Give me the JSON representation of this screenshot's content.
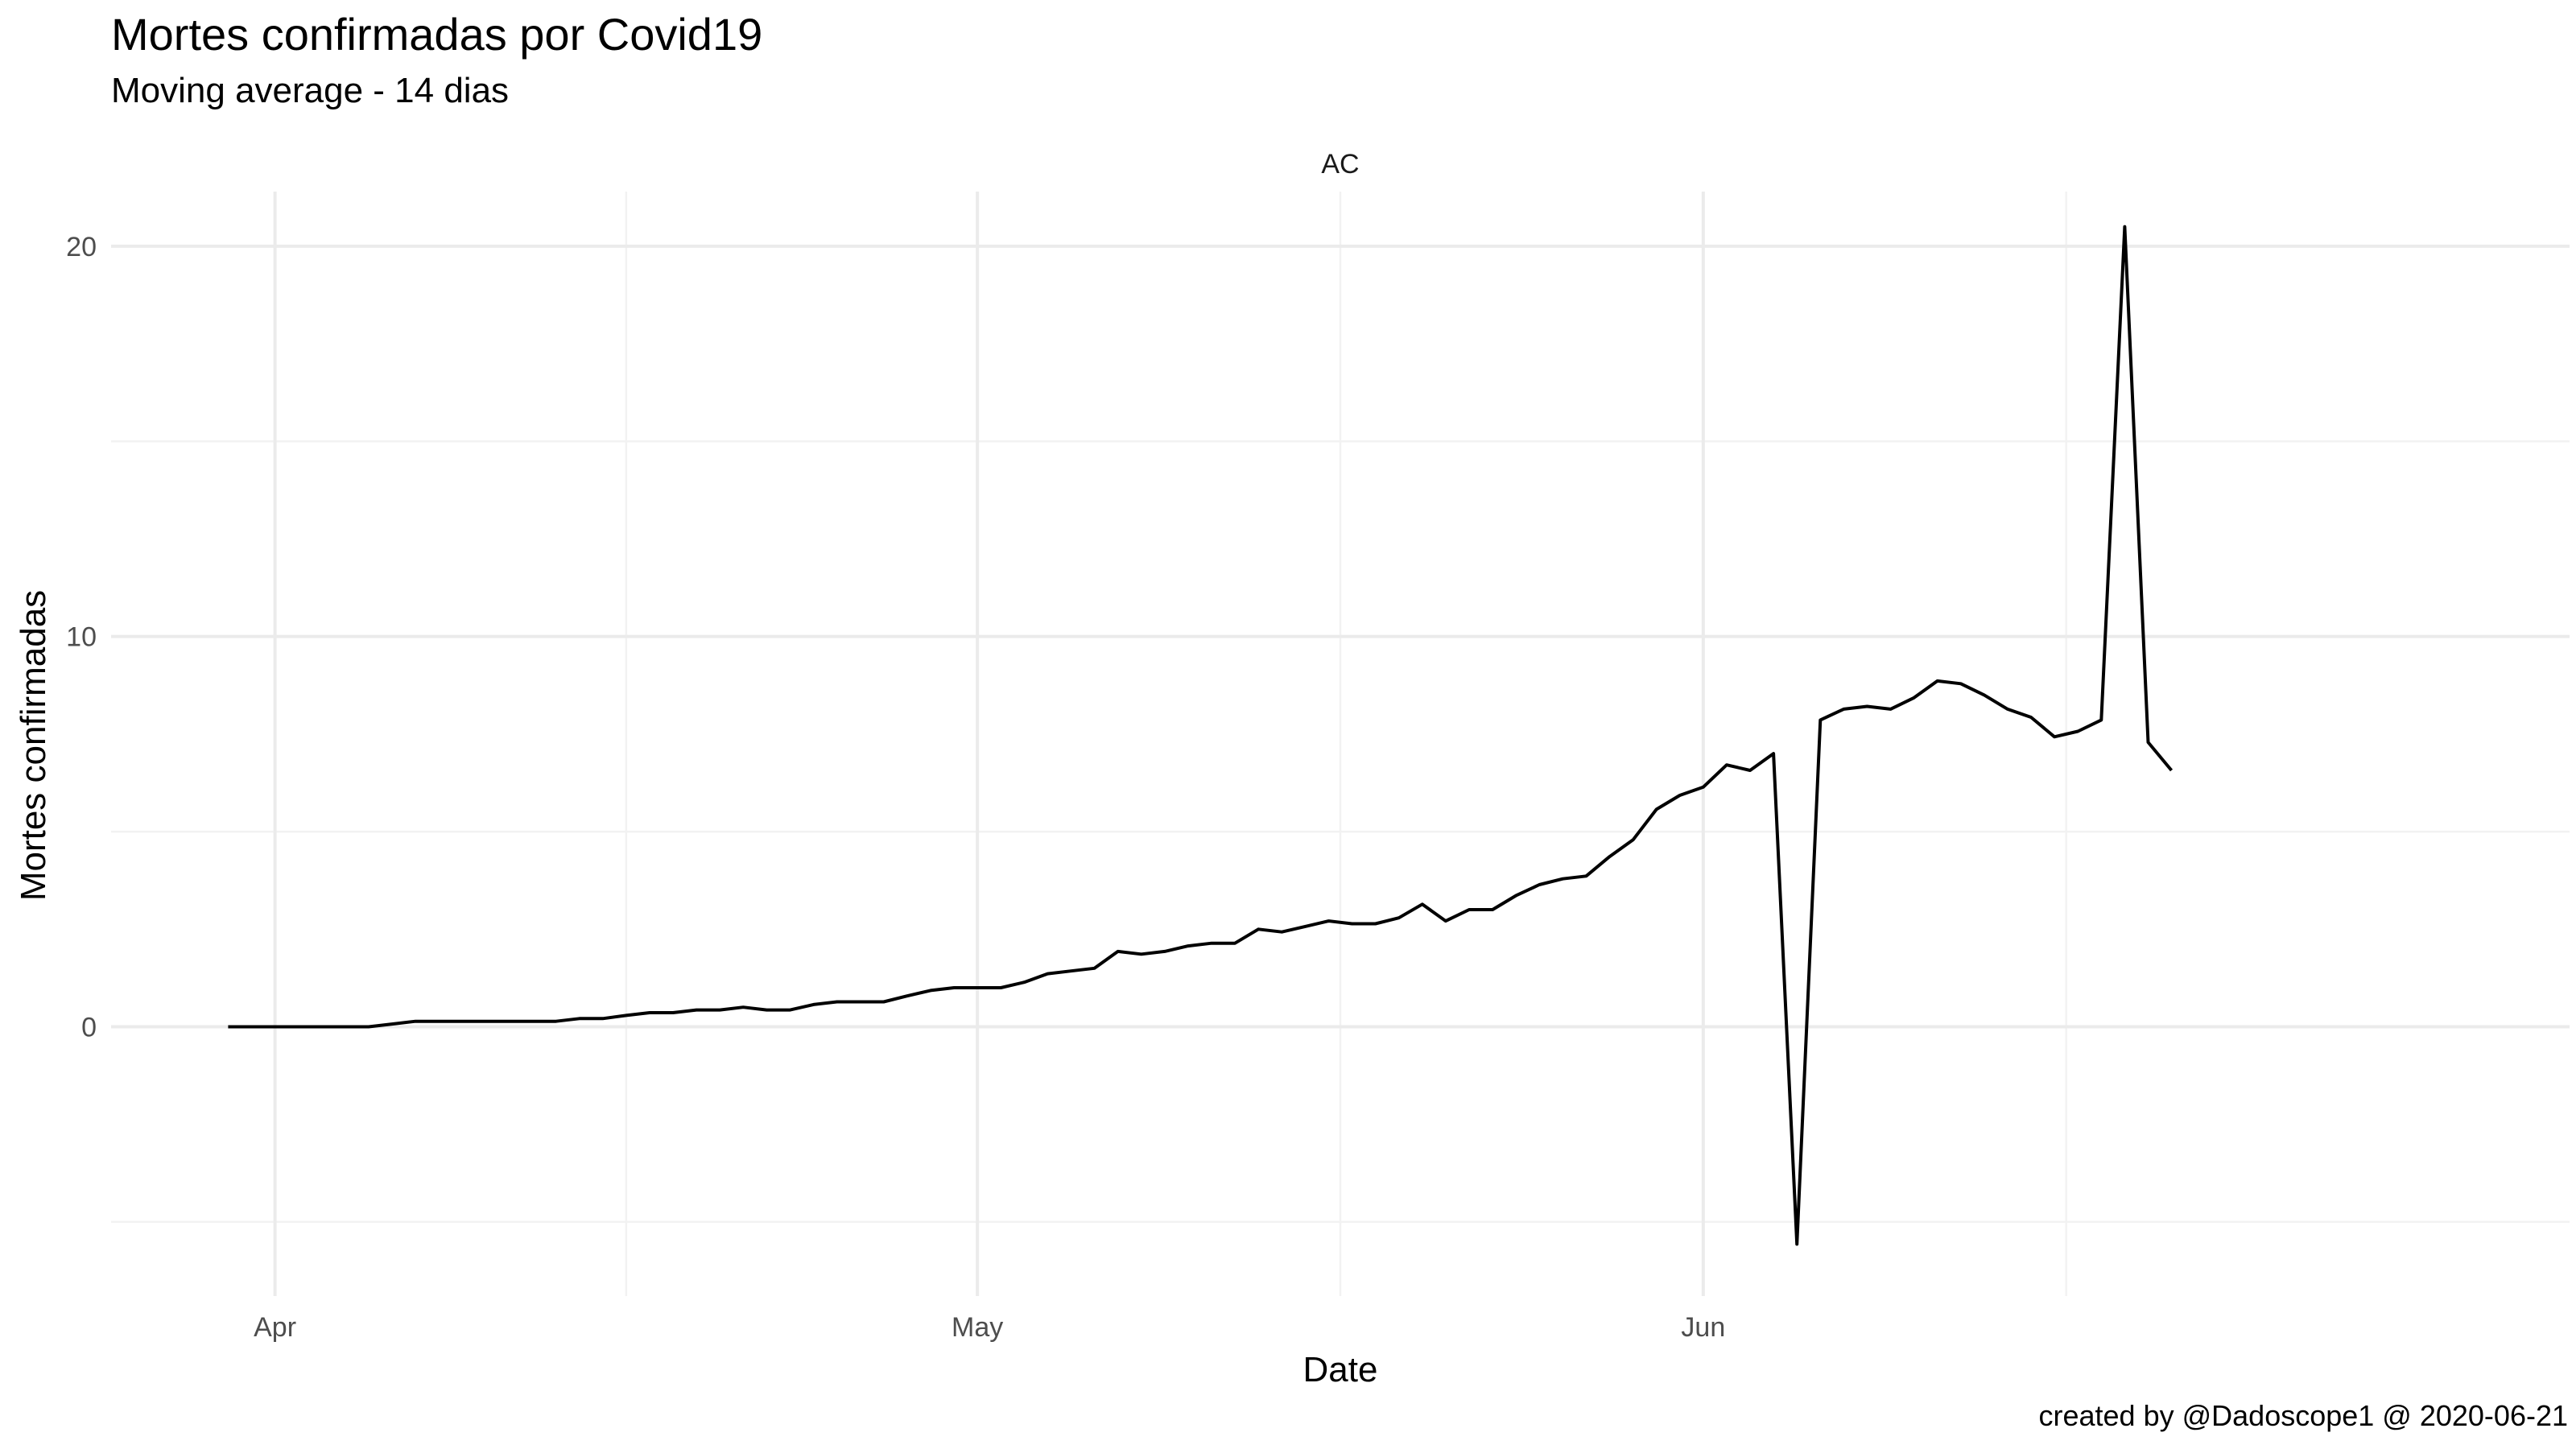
{
  "title": "Mortes confirmadas por Covid19",
  "subtitle": "Moving average - 14 dias",
  "caption": "created by @Dadoscope1 @ 2020-06-21",
  "chart_data": {
    "type": "line",
    "title": "Mortes confirmadas por Covid19",
    "subtitle": "Moving average - 14 dias",
    "facet": "AC",
    "xlabel": "Date",
    "ylabel": "Mortes confirmadas",
    "x_tick_labels": [
      "Apr",
      "May",
      "Jun"
    ],
    "x_ticks": [
      "2020-04-01",
      "2020-05-01",
      "2020-06-01"
    ],
    "y_ticks": [
      0,
      10,
      20
    ],
    "x_range": [
      "2020-03-25",
      "2020-07-08"
    ],
    "ylim": [
      -6.9,
      21.4
    ],
    "grid": true,
    "line_color": "#000000",
    "series": [
      {
        "x": [
          "2020-03-30",
          "2020-03-31",
          "2020-04-01",
          "2020-04-02",
          "2020-04-03",
          "2020-04-04",
          "2020-04-05",
          "2020-04-06",
          "2020-04-07",
          "2020-04-08",
          "2020-04-09",
          "2020-04-10",
          "2020-04-11",
          "2020-04-12",
          "2020-04-13",
          "2020-04-14",
          "2020-04-15",
          "2020-04-16",
          "2020-04-17",
          "2020-04-18",
          "2020-04-19",
          "2020-04-20",
          "2020-04-21",
          "2020-04-22",
          "2020-04-23",
          "2020-04-24",
          "2020-04-25",
          "2020-04-26",
          "2020-04-27",
          "2020-04-28",
          "2020-04-29",
          "2020-04-30",
          "2020-05-01",
          "2020-05-02",
          "2020-05-03",
          "2020-05-04",
          "2020-05-05",
          "2020-05-06",
          "2020-05-07",
          "2020-05-08",
          "2020-05-09",
          "2020-05-10",
          "2020-05-11",
          "2020-05-12",
          "2020-05-13",
          "2020-05-14",
          "2020-05-15",
          "2020-05-16",
          "2020-05-17",
          "2020-05-18",
          "2020-05-19",
          "2020-05-20",
          "2020-05-21",
          "2020-05-22",
          "2020-05-23",
          "2020-05-24",
          "2020-05-25",
          "2020-05-26",
          "2020-05-27",
          "2020-05-28",
          "2020-05-29",
          "2020-05-30",
          "2020-05-31",
          "2020-06-01",
          "2020-06-02",
          "2020-06-03",
          "2020-06-04",
          "2020-06-05",
          "2020-06-06",
          "2020-06-07",
          "2020-06-08",
          "2020-06-09",
          "2020-06-10",
          "2020-06-11",
          "2020-06-12",
          "2020-06-13",
          "2020-06-14",
          "2020-06-15",
          "2020-06-16",
          "2020-06-17",
          "2020-06-18",
          "2020-06-19",
          "2020-06-20",
          "2020-06-21"
        ],
        "y": [
          0,
          0,
          0,
          0,
          0,
          0,
          0,
          0.07,
          0.14,
          0.14,
          0.14,
          0.14,
          0.14,
          0.14,
          0.14,
          0.21,
          0.21,
          0.29,
          0.36,
          0.36,
          0.43,
          0.43,
          0.5,
          0.43,
          0.43,
          0.57,
          0.64,
          0.64,
          0.64,
          0.79,
          0.93,
          1.0,
          1.0,
          1.0,
          1.14,
          1.36,
          1.43,
          1.5,
          1.93,
          1.86,
          1.93,
          2.07,
          2.14,
          2.14,
          2.5,
          2.43,
          2.57,
          2.71,
          2.64,
          2.64,
          2.79,
          3.14,
          2.71,
          3.0,
          3.0,
          3.36,
          3.64,
          3.79,
          3.86,
          4.36,
          4.79,
          5.57,
          5.93,
          6.14,
          6.71,
          6.57,
          7.0,
          -5.57,
          7.86,
          8.14,
          8.21,
          8.14,
          8.43,
          8.86,
          8.79,
          8.5,
          8.14,
          7.93,
          7.43,
          7.57,
          7.86,
          20.5,
          7.29,
          6.57
        ]
      }
    ]
  }
}
